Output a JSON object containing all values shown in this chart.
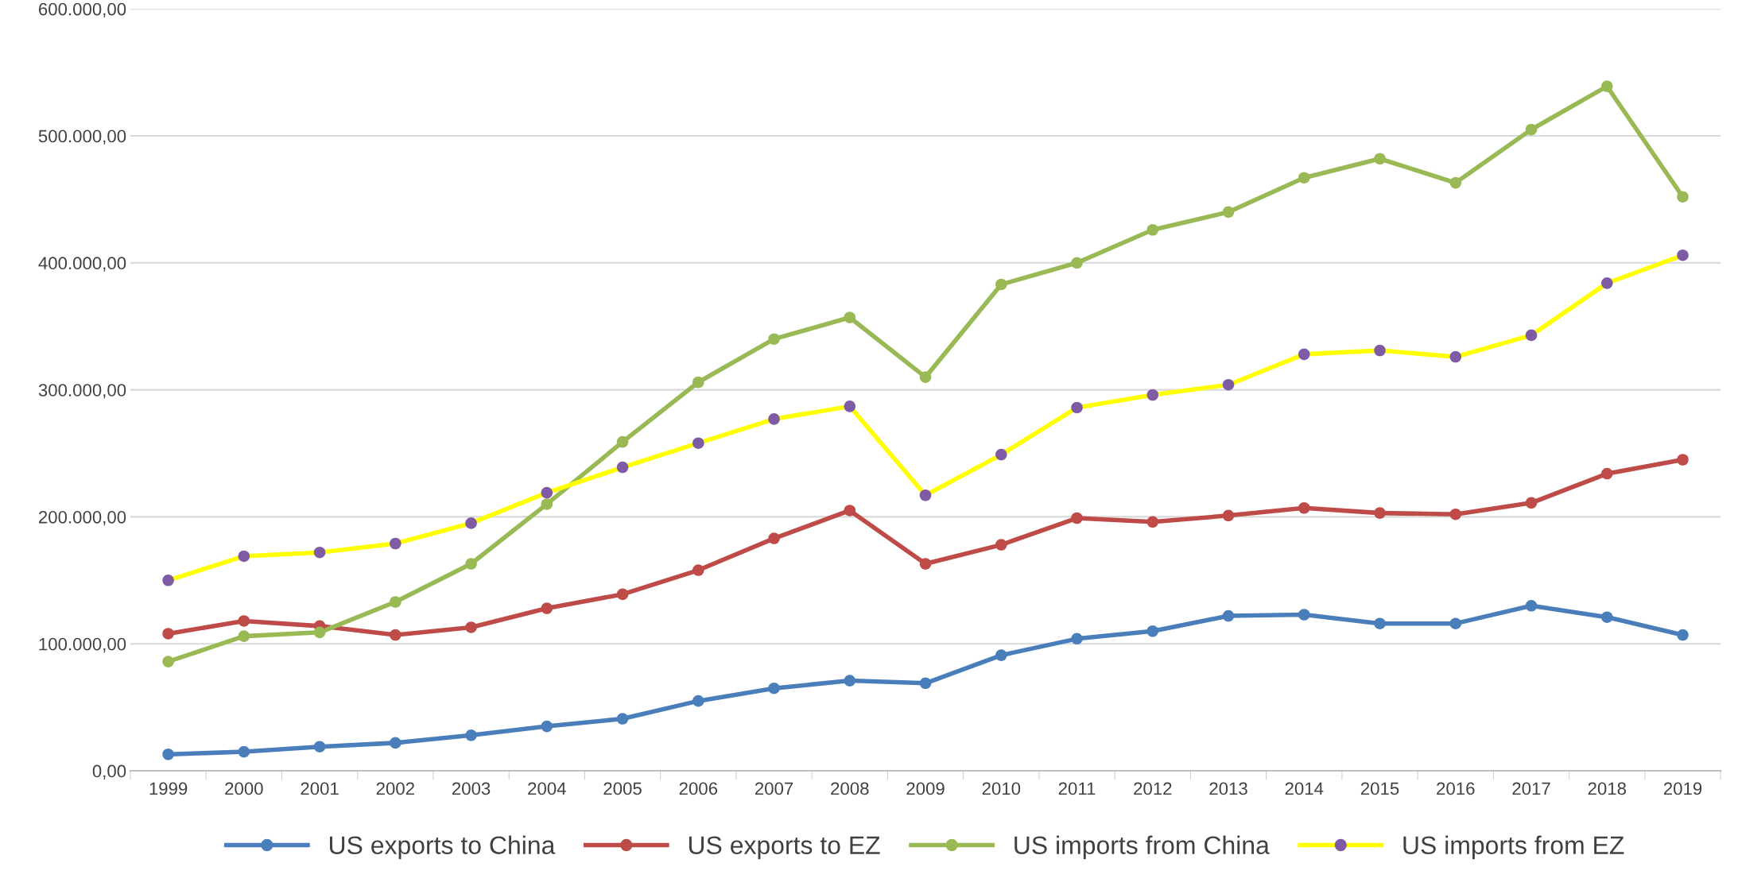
{
  "chart_data": {
    "type": "line",
    "categories": [
      "1999",
      "2000",
      "2001",
      "2002",
      "2003",
      "2004",
      "2005",
      "2006",
      "2007",
      "2008",
      "2009",
      "2010",
      "2011",
      "2012",
      "2013",
      "2014",
      "2015",
      "2016",
      "2017",
      "2018",
      "2019"
    ],
    "series": [
      {
        "name": "US exports to China",
        "color": "#4a7ebb",
        "values": [
          13000,
          15000,
          19000,
          22000,
          28000,
          35000,
          41000,
          55000,
          65000,
          71000,
          69000,
          91000,
          104000,
          110000,
          122000,
          123000,
          116000,
          116000,
          130000,
          121000,
          107000
        ]
      },
      {
        "name": "US exports to EZ",
        "color": "#be4b48",
        "values": [
          108000,
          118000,
          114000,
          107000,
          113000,
          128000,
          139000,
          158000,
          183000,
          205000,
          163000,
          178000,
          199000,
          196000,
          201000,
          207000,
          203000,
          202000,
          211000,
          234000,
          245000
        ]
      },
      {
        "name": "US imports from China",
        "color": "#98b954",
        "values": [
          86000,
          106000,
          109000,
          133000,
          163000,
          210000,
          259000,
          306000,
          340000,
          357000,
          310000,
          383000,
          400000,
          426000,
          440000,
          467000,
          482000,
          463000,
          505000,
          539000,
          452000
        ]
      },
      {
        "name": "US imports from EZ",
        "color": "#ffff00",
        "colors": [
          "#7e5ba3",
          "#7e5ba3",
          "#7e5ba3",
          "#7e5ba3",
          "#7e5ba3",
          "#7e5ba3",
          "#7e5ba3",
          "#7e5ba3",
          "#7e5ba3",
          "#7e5ba3",
          "#7e5ba3",
          "#7e5ba3",
          "#7e5ba3",
          "#7e5ba3",
          "#7e5ba3",
          "#7e5ba3",
          "#7e5ba3",
          "#7e5ba3",
          "#7e5ba3",
          "#7e5ba3",
          "#7e5ba3"
        ],
        "values": [
          150000,
          169000,
          172000,
          179000,
          195000,
          219000,
          239000,
          258000,
          277000,
          287000,
          217000,
          249000,
          286000,
          296000,
          304000,
          328000,
          331000,
          326000,
          343000,
          384000,
          406000
        ]
      }
    ],
    "ylim": [
      0,
      600000
    ],
    "yticks": [
      {
        "value": 0,
        "label": "0,00"
      },
      {
        "value": 100000,
        "label": "100.000,00"
      },
      {
        "value": 200000,
        "label": "200.000,00"
      },
      {
        "value": 300000,
        "label": "300.000,00"
      },
      {
        "value": 400000,
        "label": "400.000,00"
      },
      {
        "value": 500000,
        "label": "500.000,00"
      },
      {
        "value": 600000,
        "label": "600.000,00"
      }
    ],
    "grid": "y",
    "legend": "bottom",
    "marker": "circle",
    "line_style": "solid"
  }
}
